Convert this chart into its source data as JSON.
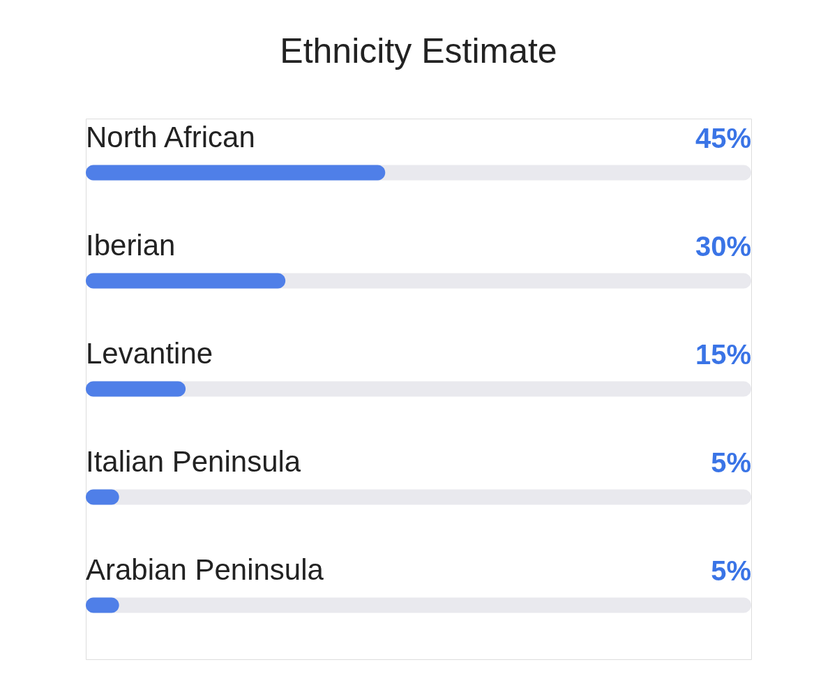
{
  "chart_data": {
    "type": "bar",
    "orientation": "horizontal",
    "title": "Ethnicity Estimate",
    "categories": [
      "North African",
      "Iberian",
      "Levantine",
      "Italian Peninsula",
      "Arabian Peninsula"
    ],
    "values": [
      45,
      30,
      15,
      5,
      5
    ],
    "value_labels": [
      "45%",
      "30%",
      "15%",
      "5%",
      "5%"
    ],
    "color": "#4f7fe8",
    "xlim": [
      0,
      100
    ],
    "tick_labels": false,
    "grid": false
  }
}
